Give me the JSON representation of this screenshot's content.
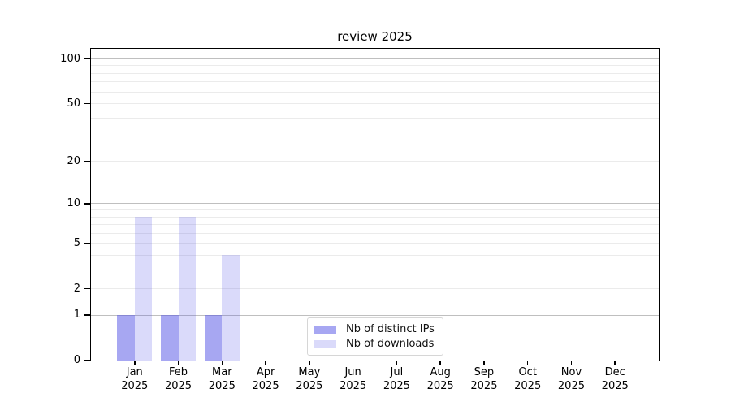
{
  "chart_data": {
    "type": "bar",
    "title": "review 2025",
    "categories": [
      "Jan",
      "Feb",
      "Mar",
      "Apr",
      "May",
      "Jun",
      "Jul",
      "Aug",
      "Sep",
      "Oct",
      "Nov",
      "Dec"
    ],
    "x_year_label": "2025",
    "series": [
      {
        "name": "Nb of distinct IPs",
        "color": "rgba(80,80,230,0.5)",
        "color_hex": "#aaaaf2",
        "values": [
          1,
          1,
          1,
          0,
          0,
          0,
          0,
          0,
          0,
          0,
          0,
          0
        ]
      },
      {
        "name": "Nb of downloads",
        "color": "rgba(80,80,230,0.21)",
        "color_hex": "#d8d8f8",
        "values": [
          8,
          8,
          4,
          0,
          0,
          0,
          0,
          0,
          0,
          0,
          0,
          0
        ]
      }
    ],
    "yscale": "log1p",
    "ylim": [
      0,
      117
    ],
    "y_ticks": [
      0,
      1,
      2,
      5,
      10,
      20,
      50,
      100
    ],
    "y_major_gridlines": [
      1,
      10,
      100
    ],
    "y_minor_gridlines": [
      2,
      3,
      4,
      5,
      6,
      7,
      8,
      9,
      20,
      30,
      40,
      50,
      60,
      70,
      80,
      90
    ],
    "grid": true,
    "legend_position": "lower center",
    "axis_color": "#000000",
    "major_grid_color": "#bfbfbf",
    "minor_grid_color": "#ebebeb"
  }
}
